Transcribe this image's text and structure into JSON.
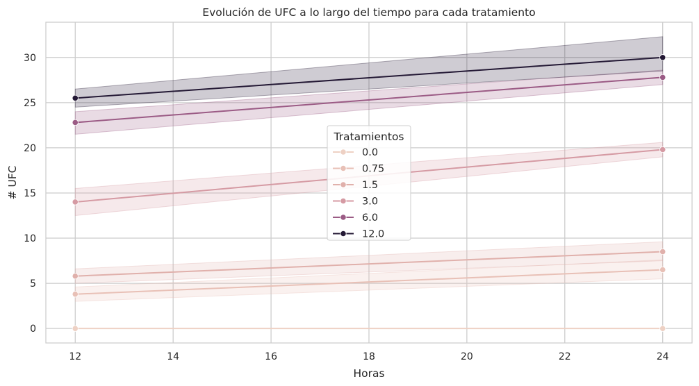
{
  "chart_data": {
    "type": "line",
    "title": "Evolución de UFC a lo largo del tiempo para cada tratamiento",
    "xlabel": "Horas",
    "ylabel": "# UFC",
    "xlim": [
      11.4,
      24.6
    ],
    "ylim": [
      -1.6,
      33.9
    ],
    "xticks": [
      12,
      14,
      16,
      18,
      20,
      22,
      24
    ],
    "yticks": [
      0,
      5,
      10,
      15,
      20,
      25,
      30
    ],
    "grid": true,
    "x": [
      12,
      24
    ],
    "legend": {
      "title": "Tratamientos",
      "placement": "center"
    },
    "series": [
      {
        "name": "0.0",
        "color": "#eed1c4",
        "values": [
          0.0,
          0.0
        ],
        "ci_low": [
          0.0,
          0.0
        ],
        "ci_high": [
          0.0,
          0.0
        ]
      },
      {
        "name": "0.75",
        "color": "#e8c0b6",
        "values": [
          3.8,
          6.5
        ],
        "ci_low": [
          3.0,
          5.5
        ],
        "ci_high": [
          4.6,
          7.6
        ]
      },
      {
        "name": "1.5",
        "color": "#e0b0ab",
        "values": [
          5.8,
          8.5
        ],
        "ci_low": [
          5.0,
          7.5
        ],
        "ci_high": [
          6.6,
          9.6
        ]
      },
      {
        "name": "3.0",
        "color": "#d59aa3",
        "values": [
          14.0,
          19.8
        ],
        "ci_low": [
          12.5,
          19.0
        ],
        "ci_high": [
          15.5,
          20.6
        ]
      },
      {
        "name": "6.0",
        "color": "#9b5b85",
        "values": [
          22.8,
          27.8
        ],
        "ci_low": [
          21.5,
          27.0
        ],
        "ci_high": [
          24.0,
          28.6
        ]
      },
      {
        "name": "12.0",
        "color": "#241935",
        "values": [
          25.5,
          30.0
        ],
        "ci_low": [
          24.5,
          28.5
        ],
        "ci_high": [
          26.5,
          32.3
        ]
      }
    ]
  }
}
